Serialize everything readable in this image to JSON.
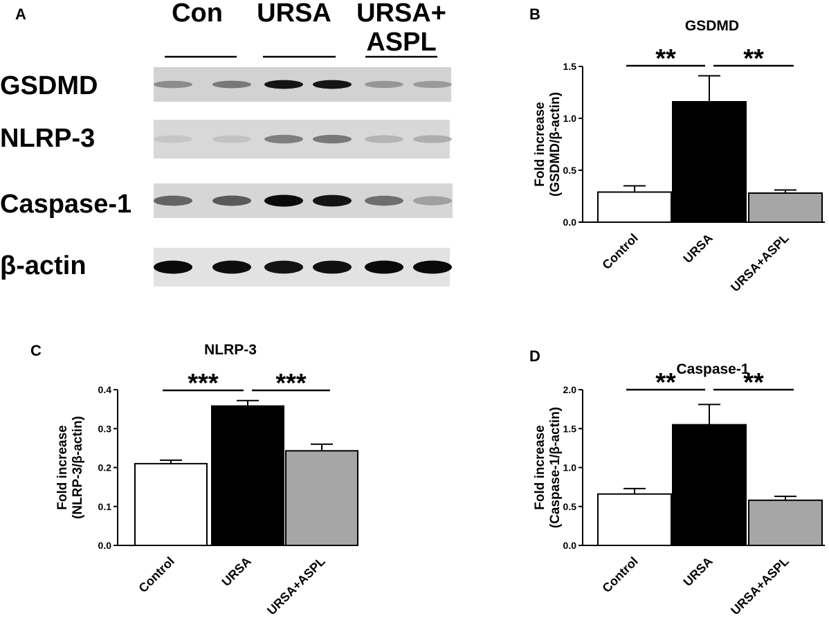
{
  "panels": {
    "a": {
      "letter": "A"
    },
    "b": {
      "letter": "B"
    },
    "c": {
      "letter": "C"
    },
    "d": {
      "letter": "D"
    }
  },
  "blot": {
    "groups": [
      {
        "lines": [
          "Con"
        ]
      },
      {
        "lines": [
          "URSA"
        ]
      },
      {
        "lines": [
          "URSA+",
          "ASPL"
        ]
      }
    ],
    "rows": [
      {
        "label": "GSDMD",
        "intensities": [
          0.35,
          0.45,
          0.95,
          0.95,
          0.3,
          0.28
        ],
        "bg": "#d2d2d2"
      },
      {
        "label": "NLRP-3",
        "intensities": [
          0.06,
          0.08,
          0.42,
          0.45,
          0.15,
          0.18
        ],
        "bg": "#d8d8d8"
      },
      {
        "label": "Caspase-1",
        "intensities": [
          0.55,
          0.6,
          1.0,
          0.95,
          0.5,
          0.25
        ],
        "bg": "#d6d6d6"
      },
      {
        "label": "β-actin",
        "intensities": [
          1.0,
          0.98,
          0.95,
          0.97,
          1.0,
          1.0
        ],
        "bg": "#e2e2e2"
      }
    ]
  },
  "chart_data": [
    {
      "type": "bar",
      "panel": "B",
      "title": "GSDMD",
      "ylabel_lines": [
        "Fold increase",
        "(GSDMD/β-actin)"
      ],
      "categories": [
        "Control",
        "URSA",
        "URSA+ASPL"
      ],
      "values": [
        0.29,
        1.16,
        0.28
      ],
      "errors": [
        0.06,
        0.25,
        0.03
      ],
      "colors": [
        "#ffffff",
        "#000000",
        "#a6a6a6"
      ],
      "ylim": [
        0,
        1.5
      ],
      "yticks": [
        0.0,
        0.5,
        1.0,
        1.5
      ],
      "ytick_labels": [
        "0.0",
        "0.5",
        "1.0",
        "1.5"
      ],
      "significance": [
        {
          "from": 0,
          "to": 1,
          "label": "**"
        },
        {
          "from": 1,
          "to": 2,
          "label": "**"
        }
      ]
    },
    {
      "type": "bar",
      "panel": "C",
      "title": "NLRP-3",
      "ylabel_lines": [
        "Fold increase",
        "(NLRP-3/β-actin)"
      ],
      "categories": [
        "Control",
        "URSA",
        "URSA+ASPL"
      ],
      "values": [
        0.21,
        0.358,
        0.243
      ],
      "errors": [
        0.009,
        0.014,
        0.017
      ],
      "colors": [
        "#ffffff",
        "#000000",
        "#a6a6a6"
      ],
      "ylim": [
        0,
        0.4
      ],
      "yticks": [
        0.0,
        0.1,
        0.2,
        0.3,
        0.4
      ],
      "ytick_labels": [
        "0.0",
        "0.1",
        "0.2",
        "0.3",
        "0.4"
      ],
      "significance": [
        {
          "from": 0,
          "to": 1,
          "label": "***"
        },
        {
          "from": 1,
          "to": 2,
          "label": "***"
        }
      ]
    },
    {
      "type": "bar",
      "panel": "D",
      "title": "Caspase-1",
      "ylabel_lines": [
        "Fold increase",
        "(Caspase-1/β-actin)"
      ],
      "categories": [
        "Control",
        "URSA",
        "URSA+ASPL"
      ],
      "values": [
        0.66,
        1.55,
        0.58
      ],
      "errors": [
        0.07,
        0.26,
        0.05
      ],
      "colors": [
        "#ffffff",
        "#000000",
        "#a6a6a6"
      ],
      "ylim": [
        0,
        2.0
      ],
      "yticks": [
        0.0,
        0.5,
        1.0,
        1.5,
        2.0
      ],
      "ytick_labels": [
        "0.0",
        "0.5",
        "1.0",
        "1.5",
        "2.0"
      ],
      "significance": [
        {
          "from": 0,
          "to": 1,
          "label": "**"
        },
        {
          "from": 1,
          "to": 2,
          "label": "**"
        }
      ]
    }
  ]
}
